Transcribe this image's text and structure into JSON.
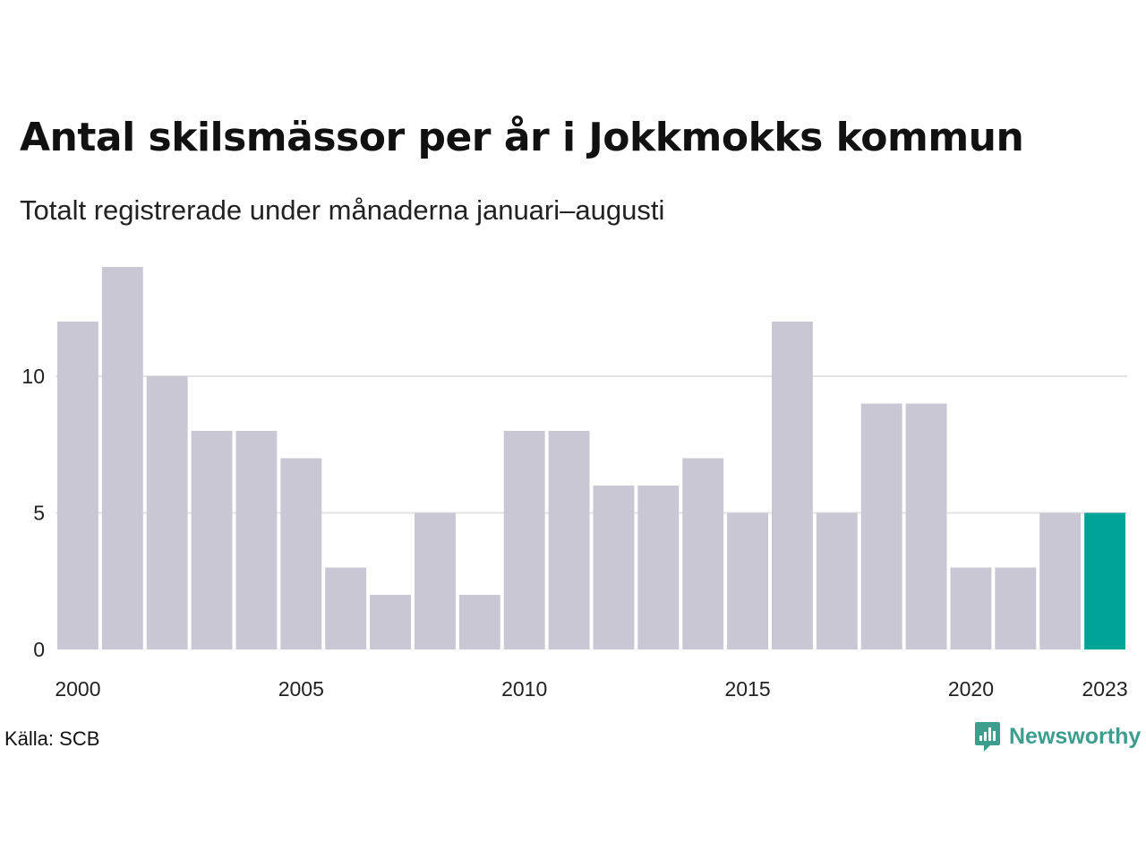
{
  "title": "Antal skilsmässor per år i Jokkmokks kommun",
  "subtitle": "Totalt registrerade under månaderna januari–augusti",
  "source": "Källa: SCB",
  "brand": {
    "name": "Newsworthy",
    "icon": "newsworthy-logo-icon",
    "color": "#3d9e8e"
  },
  "colors": {
    "bar": "#c8c7d3",
    "highlight": "#00a398",
    "grid": "#e3e3e3"
  },
  "chart_data": {
    "type": "bar",
    "title": "Antal skilsmässor per år i Jokkmokks kommun",
    "subtitle": "Totalt registrerade under månaderna januari–augusti",
    "xlabel": "",
    "ylabel": "",
    "categories": [
      2000,
      2001,
      2002,
      2003,
      2004,
      2005,
      2006,
      2007,
      2008,
      2009,
      2010,
      2011,
      2012,
      2013,
      2014,
      2015,
      2016,
      2017,
      2018,
      2019,
      2020,
      2021,
      2022,
      2023
    ],
    "values": [
      12,
      14,
      10,
      8,
      8,
      7,
      3,
      2,
      5,
      2,
      8,
      8,
      6,
      6,
      7,
      5,
      12,
      5,
      9,
      9,
      3,
      3,
      5,
      5
    ],
    "highlight_category": 2023,
    "ylim": [
      0,
      14
    ],
    "yticks": [
      0,
      5,
      10
    ],
    "xtick_labels": [
      "2000",
      "2005",
      "2010",
      "2015",
      "2020",
      "2023"
    ],
    "grid": true,
    "legend": "none"
  }
}
